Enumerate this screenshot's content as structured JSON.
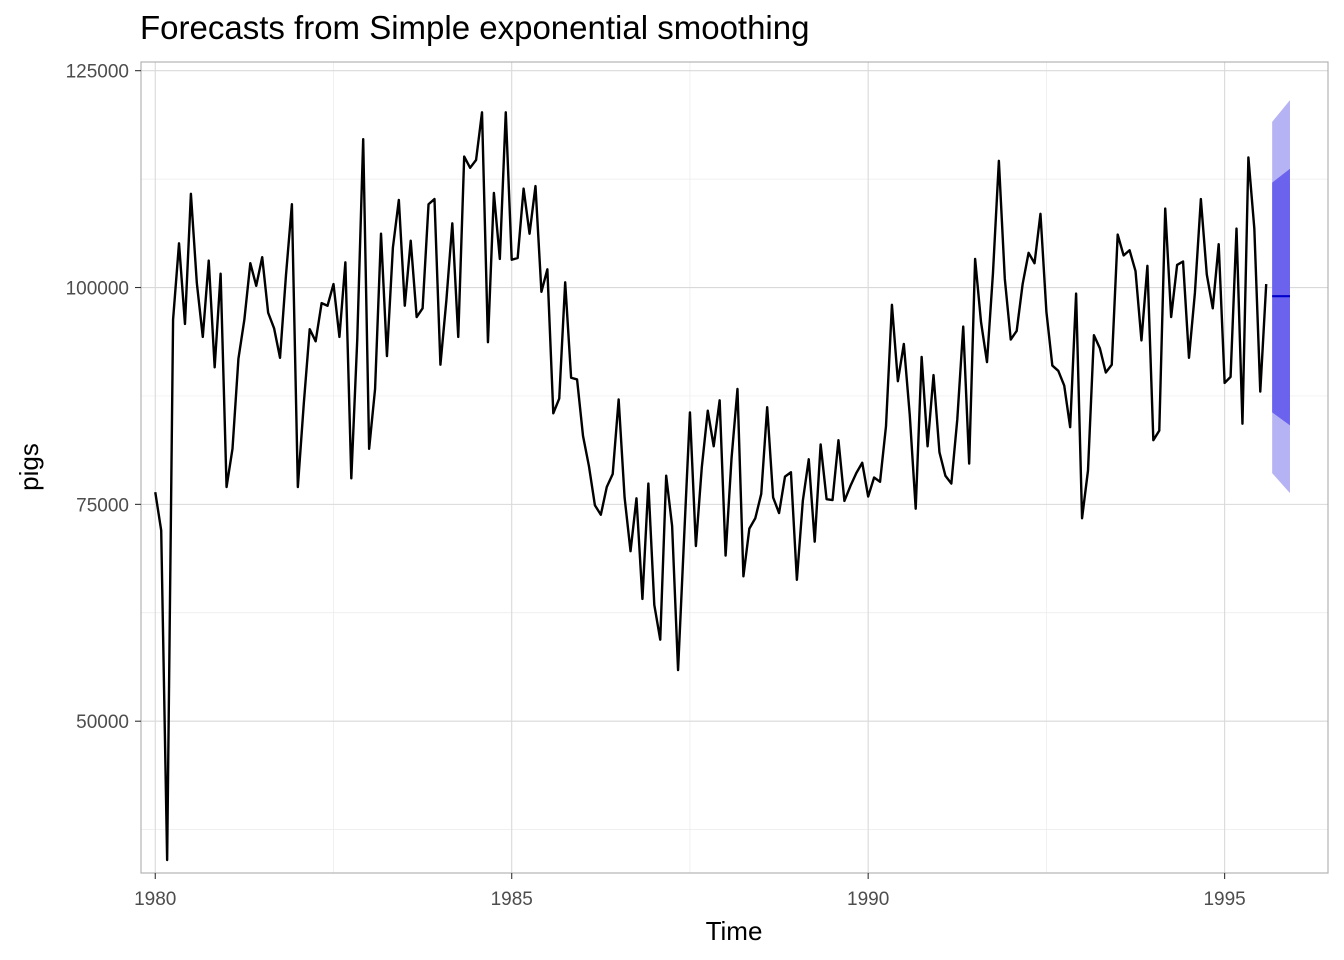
{
  "chart_data": {
    "type": "line",
    "title": "Forecasts from Simple exponential smoothing",
    "xlabel": "Time",
    "ylabel": "pigs",
    "xlim": [
      1979.8,
      1996.45
    ],
    "ylim": [
      32500,
      126000
    ],
    "x_ticks": [
      1980,
      1985,
      1990,
      1995
    ],
    "x_tick_labels": [
      "1980",
      "1985",
      "1990",
      "1995"
    ],
    "y_ticks": [
      50000,
      75000,
      100000,
      125000
    ],
    "y_tick_labels": [
      "50000",
      "75000",
      "100000",
      "125000"
    ],
    "grid": true,
    "legend": "none",
    "colors": {
      "series": "#000000",
      "forecast": "#0000cc",
      "pi80": "#6b63ee",
      "pi95": "#b5b3f4"
    },
    "series": {
      "start": 1980.0,
      "frequency": 12,
      "values": [
        76400,
        72000,
        34000,
        96300,
        105100,
        95800,
        110800,
        100500,
        94300,
        103100,
        90800,
        101600,
        77000,
        81400,
        91800,
        96300,
        102800,
        100200,
        103500,
        97100,
        95300,
        91900,
        101400,
        109600,
        77000,
        86600,
        95200,
        93800,
        98200,
        97900,
        100400,
        94300,
        102900,
        78000,
        94000,
        117100,
        81400,
        88300,
        106200,
        92100,
        104600,
        110100,
        97900,
        105400,
        96600,
        97600,
        109600,
        110200,
        91100,
        98500,
        107400,
        94300,
        115100,
        113800,
        114700,
        120200,
        93700,
        110900,
        103300,
        120200,
        103200,
        103400,
        111400,
        106200,
        111700,
        99500,
        102100,
        85500,
        87200,
        100600,
        89600,
        89400,
        82900,
        79400,
        74900,
        73800,
        77000,
        78500,
        87100,
        75800,
        69600,
        75700,
        64100,
        77400,
        63400,
        59400,
        78300,
        72500,
        55900,
        70900,
        85600,
        70200,
        79300,
        85800,
        81700,
        87000,
        69100,
        80300,
        88300,
        66700,
        72200,
        73400,
        76200,
        86200,
        75800,
        74000,
        78200,
        78700,
        66300,
        75400,
        80200,
        70700,
        81900,
        75600,
        75500,
        82400,
        75400,
        77100,
        78600,
        79800,
        75900,
        78100,
        77600,
        84000,
        98000,
        89200,
        93500,
        85300,
        74500,
        92000,
        81700,
        89900,
        81000,
        78300,
        77400,
        84800,
        95500,
        79700,
        103300,
        96000,
        91400,
        101600,
        114600,
        101000,
        94000,
        95000,
        100400,
        104000,
        102800,
        108500,
        97200,
        91000,
        90400,
        88700,
        83900,
        99300,
        73400,
        78900,
        94500,
        93000,
        90200,
        91100,
        106100,
        103700,
        104300,
        101900,
        93900,
        102500,
        82400,
        83500,
        109100,
        96600,
        102600,
        103000,
        91900,
        99400,
        110200,
        101500,
        97600,
        105000,
        89000,
        89700,
        106800,
        84300,
        115000,
        106800,
        88000,
        100400
      ]
    },
    "forecast": {
      "x_start": 1995.6667,
      "x_end": 1995.9167,
      "point": 99000,
      "lo80_start": 85600,
      "lo80_end": 84100,
      "hi80_start": 112100,
      "hi80_end": 113700,
      "lo95_start": 78600,
      "lo95_end": 76300,
      "hi95_start": 119100,
      "hi95_end": 121600
    }
  }
}
